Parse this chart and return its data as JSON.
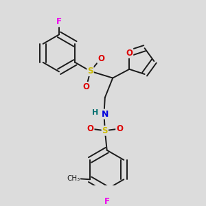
{
  "background_color": "#dcdcdc",
  "bond_color": "#1a1a1a",
  "atom_colors": {
    "F": "#ee00ee",
    "O": "#dd0000",
    "S": "#ccbb00",
    "N": "#0000dd",
    "H": "#007070",
    "C": "#1a1a1a"
  },
  "figsize": [
    3.0,
    3.0
  ],
  "dpi": 100
}
